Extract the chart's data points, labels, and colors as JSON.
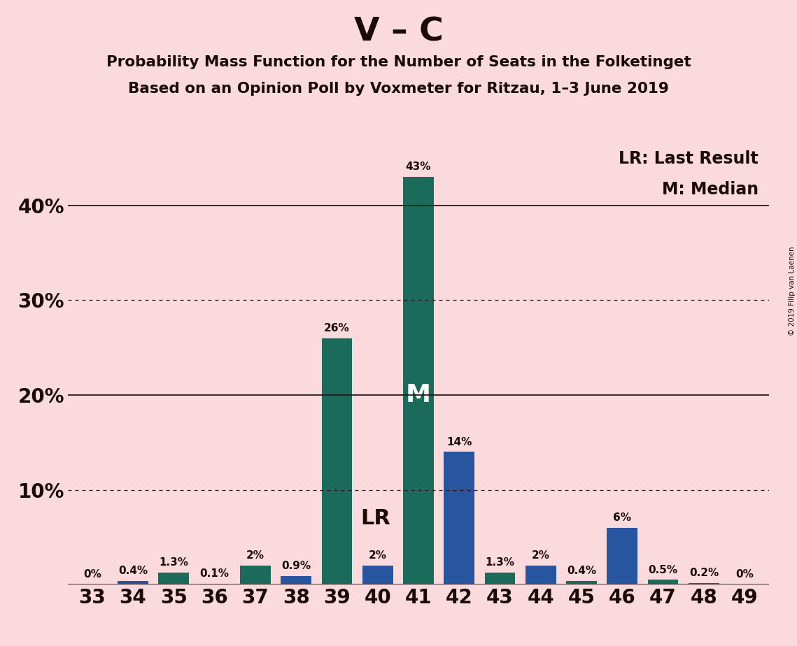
{
  "title_main": "V – C",
  "title_sub1": "Probability Mass Function for the Number of Seats in the Folketinget",
  "title_sub2": "Based on an Opinion Poll by Voxmeter for Ritzau, 1–3 June 2019",
  "copyright": "© 2019 Filip van Laenen",
  "seats": [
    33,
    34,
    35,
    36,
    37,
    38,
    39,
    40,
    41,
    42,
    43,
    44,
    45,
    46,
    47,
    48,
    49
  ],
  "probabilities": [
    0.0,
    0.4,
    1.3,
    0.1,
    2.0,
    0.9,
    26.0,
    2.0,
    43.0,
    14.0,
    1.3,
    2.0,
    0.4,
    6.0,
    0.5,
    0.2,
    0.0
  ],
  "labels": [
    "0%",
    "0.4%",
    "1.3%",
    "0.1%",
    "2%",
    "0.9%",
    "26%",
    "2%",
    "43%",
    "14%",
    "1.3%",
    "2%",
    "0.4%",
    "6%",
    "0.5%",
    "0.2%",
    "0%"
  ],
  "last_result": 40,
  "median": 41,
  "teal_color": "#1a6b5a",
  "blue_color": "#2855a0",
  "background_color": "#fadadd",
  "text_color": "#1a0a0a",
  "ytick_vals": [
    0,
    10,
    20,
    30,
    40
  ],
  "ytick_labels": [
    "",
    "10%",
    "20%",
    "30%",
    "40%"
  ],
  "ylim": [
    0,
    47
  ],
  "legend_lr": "LR: Last Result",
  "legend_m": "M: Median",
  "annotation_lr": "LR",
  "annotation_m": "M",
  "solid_hlines": [
    0,
    20,
    40
  ],
  "dotted_hlines": [
    10,
    30
  ]
}
